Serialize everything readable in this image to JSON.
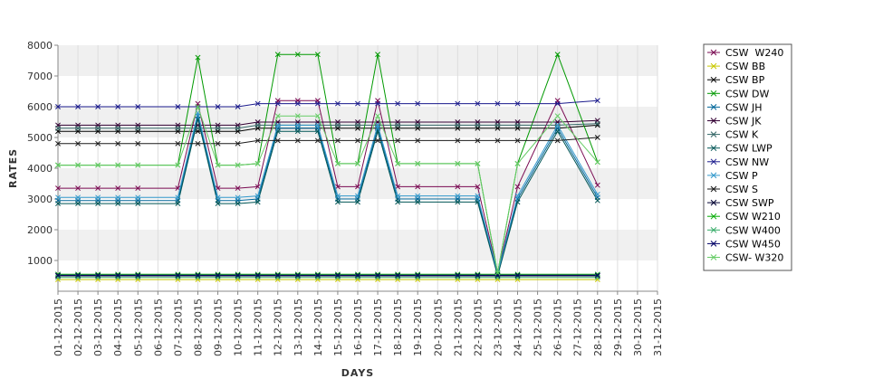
{
  "chart_data": {
    "type": "line",
    "xlabel": "DAYS",
    "ylabel": "RATES",
    "ylim": [
      0,
      8000
    ],
    "yticks": [
      1000,
      2000,
      3000,
      4000,
      5000,
      6000,
      7000,
      8000
    ],
    "grid": "vertical gridlines, alternating horizontal bands",
    "legend_position": "right",
    "categories": [
      "01-12-2015",
      "02-12-2015",
      "03-12-2015",
      "04-12-2015",
      "05-12-2015",
      "06-12-2015",
      "07-12-2015",
      "08-12-2015",
      "09-12-2015",
      "10-12-2015",
      "11-12-2015",
      "12-12-2015",
      "13-12-2015",
      "14-12-2015",
      "15-12-2015",
      "16-12-2015",
      "17-12-2015",
      "18-12-2015",
      "19-12-2015",
      "20-12-2015",
      "21-12-2015",
      "22-12-2015",
      "23-12-2015",
      "24-12-2015",
      "25-12-2015",
      "26-12-2015",
      "27-12-2015",
      "28-12-2015",
      "29-12-2015",
      "30-12-2015",
      "31-12-2015"
    ],
    "series": [
      {
        "name": "CSW  W240",
        "color": "#7a0a52",
        "values": [
          3350,
          3350,
          3350,
          3350,
          3350,
          null,
          3350,
          6100,
          3350,
          3350,
          3400,
          6200,
          6200,
          6200,
          3400,
          3400,
          6200,
          3400,
          3400,
          null,
          3400,
          3400,
          600,
          3400,
          null,
          6200,
          null,
          3450,
          null,
          null,
          null
        ]
      },
      {
        "name": "CSW BB",
        "color": "#c8c800",
        "values": [
          380,
          380,
          380,
          380,
          380,
          null,
          380,
          380,
          380,
          380,
          380,
          380,
          380,
          380,
          380,
          380,
          380,
          380,
          380,
          null,
          380,
          380,
          380,
          380,
          null,
          null,
          null,
          380,
          null,
          null,
          null
        ]
      },
      {
        "name": "CSW BP",
        "color": "#000000",
        "values": [
          5200,
          5200,
          5200,
          5200,
          5200,
          null,
          5200,
          5200,
          5200,
          5200,
          5300,
          5300,
          5300,
          5300,
          5300,
          5300,
          5300,
          5300,
          5300,
          null,
          5300,
          5300,
          5300,
          5300,
          null,
          5300,
          null,
          5400,
          null,
          null,
          null
        ]
      },
      {
        "name": "CSW DW",
        "color": "#009900",
        "values": [
          4100,
          4100,
          4100,
          4100,
          4100,
          null,
          4100,
          7600,
          4100,
          4100,
          4150,
          7700,
          7700,
          7700,
          4150,
          4150,
          7700,
          4150,
          4150,
          null,
          4150,
          4150,
          600,
          4150,
          null,
          7700,
          null,
          4200,
          null,
          null,
          null
        ]
      },
      {
        "name": "CSW JH",
        "color": "#006699",
        "values": [
          2950,
          2950,
          2950,
          2950,
          2950,
          null,
          2950,
          5700,
          2950,
          2950,
          3000,
          5300,
          5300,
          5300,
          3000,
          3000,
          5300,
          3000,
          3000,
          null,
          3000,
          3000,
          550,
          3000,
          null,
          5300,
          null,
          3050,
          null,
          null,
          null
        ]
      },
      {
        "name": "CSW JK",
        "color": "#330033",
        "values": [
          5400,
          5400,
          5400,
          5400,
          5400,
          null,
          5400,
          5400,
          5400,
          5400,
          5500,
          5500,
          5500,
          5500,
          5500,
          5500,
          5500,
          5500,
          5500,
          null,
          5500,
          5500,
          5500,
          5500,
          null,
          5500,
          null,
          5550,
          null,
          null,
          null
        ]
      },
      {
        "name": "CSW K",
        "color": "#336666",
        "values": [
          5300,
          5300,
          5300,
          5300,
          5300,
          null,
          5300,
          5300,
          5300,
          5300,
          5400,
          5400,
          5400,
          5400,
          5400,
          5400,
          5400,
          5400,
          5400,
          null,
          5400,
          5400,
          5400,
          5400,
          null,
          5400,
          null,
          5450,
          null,
          null,
          null
        ]
      },
      {
        "name": "CSW LWP",
        "color": "#005555",
        "values": [
          2850,
          2850,
          2850,
          2850,
          2850,
          null,
          2850,
          5600,
          2850,
          2850,
          2900,
          5200,
          5200,
          5200,
          2900,
          2900,
          5200,
          2900,
          2900,
          null,
          2900,
          2900,
          500,
          2900,
          null,
          5200,
          null,
          2950,
          null,
          null,
          null
        ]
      },
      {
        "name": "CSW NW",
        "color": "#1a1a8c",
        "values": [
          6000,
          6000,
          6000,
          6000,
          6000,
          null,
          6000,
          6000,
          6000,
          6000,
          6100,
          6100,
          6100,
          6100,
          6100,
          6100,
          6100,
          6100,
          6100,
          null,
          6100,
          6100,
          6100,
          6100,
          null,
          6100,
          null,
          6200,
          null,
          null,
          null
        ]
      },
      {
        "name": "CSW P",
        "color": "#3399cc",
        "values": [
          3050,
          3050,
          3050,
          3050,
          3050,
          null,
          3050,
          5800,
          3050,
          3050,
          3100,
          5400,
          5400,
          5400,
          3100,
          3100,
          5400,
          3100,
          3100,
          null,
          3100,
          3100,
          600,
          3100,
          null,
          5400,
          null,
          3150,
          null,
          null,
          null
        ]
      },
      {
        "name": "CSW S",
        "color": "#1a1a1a",
        "values": [
          4800,
          4800,
          4800,
          4800,
          4800,
          null,
          4800,
          4800,
          4800,
          4800,
          4900,
          4900,
          4900,
          4900,
          4900,
          4900,
          4900,
          4900,
          4900,
          null,
          4900,
          4900,
          4900,
          4900,
          null,
          4900,
          null,
          5000,
          null,
          null,
          null
        ]
      },
      {
        "name": "CSW SWP",
        "color": "#000033",
        "values": [
          500,
          500,
          500,
          500,
          500,
          null,
          500,
          500,
          500,
          500,
          500,
          500,
          500,
          500,
          500,
          500,
          500,
          500,
          500,
          null,
          500,
          500,
          500,
          500,
          null,
          null,
          null,
          500,
          null,
          null,
          null
        ]
      },
      {
        "name": "CSW W210",
        "color": "#00aa00",
        "values": [
          550,
          550,
          550,
          550,
          550,
          null,
          550,
          550,
          550,
          550,
          550,
          550,
          550,
          550,
          550,
          550,
          550,
          550,
          550,
          null,
          550,
          550,
          550,
          550,
          null,
          null,
          null,
          550,
          null,
          null,
          null
        ]
      },
      {
        "name": "CSW W400",
        "color": "#33aa66",
        "values": [
          450,
          450,
          450,
          450,
          450,
          null,
          450,
          450,
          450,
          450,
          450,
          450,
          450,
          450,
          450,
          450,
          450,
          450,
          450,
          null,
          450,
          450,
          450,
          450,
          null,
          null,
          null,
          450,
          null,
          null,
          null
        ]
      },
      {
        "name": "CSW W450",
        "color": "#000066",
        "values": [
          520,
          520,
          520,
          520,
          520,
          null,
          520,
          520,
          520,
          520,
          520,
          520,
          520,
          520,
          520,
          520,
          520,
          520,
          520,
          null,
          520,
          520,
          520,
          520,
          null,
          null,
          null,
          520,
          null,
          null,
          null
        ]
      },
      {
        "name": "CSW- W320",
        "color": "#66cc66",
        "values": [
          4100,
          4100,
          4100,
          4100,
          4100,
          null,
          4100,
          6000,
          4100,
          4100,
          4150,
          5700,
          5700,
          5700,
          4150,
          4150,
          5700,
          4150,
          4150,
          null,
          4150,
          4150,
          600,
          4150,
          null,
          5700,
          null,
          4200,
          null,
          null,
          null
        ]
      }
    ]
  }
}
